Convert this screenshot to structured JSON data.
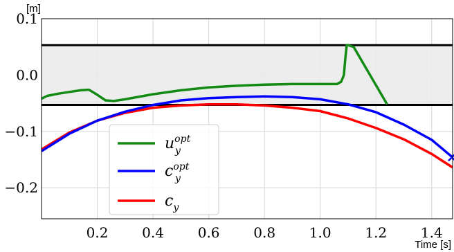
{
  "chart_data": {
    "type": "line",
    "title": "",
    "xlabel": "Time [s]",
    "ylabel": "[m]",
    "xlim": [
      0.0,
      1.475
    ],
    "ylim": [
      -0.255,
      0.1
    ],
    "xticks": [
      0.2,
      0.4,
      0.6,
      0.8,
      1.0,
      1.2,
      1.4
    ],
    "xtick_labels": [
      "0.2",
      "0.4",
      "0.6",
      "0.8",
      "1.0",
      "1.2",
      "1.4"
    ],
    "yticks": [
      0.1,
      0.0,
      -0.1,
      -0.2
    ],
    "ytick_labels": [
      "0.1",
      "0.0",
      "−0.1",
      "−0.2"
    ],
    "grid": true,
    "legend_position": "lower-left",
    "bounds": {
      "upper": 0.053,
      "lower": -0.053,
      "line_color": "#000000",
      "fill_color": "#ebebeb"
    },
    "series": [
      {
        "name": "u",
        "sup": "opt",
        "sub": "y",
        "color": "#138a13",
        "x": [
          0.0,
          0.02,
          0.06,
          0.1,
          0.14,
          0.17,
          0.2,
          0.23,
          0.26,
          0.3,
          0.4,
          0.5,
          0.6,
          0.7,
          0.8,
          0.9,
          1.0,
          1.06,
          1.075,
          1.085,
          1.09,
          1.095,
          1.1,
          1.12,
          1.16,
          1.2,
          1.24
        ],
        "y": [
          -0.042,
          -0.037,
          -0.033,
          -0.03,
          -0.027,
          -0.026,
          -0.035,
          -0.045,
          -0.046,
          -0.043,
          -0.034,
          -0.027,
          -0.022,
          -0.019,
          -0.017,
          -0.016,
          -0.016,
          -0.016,
          -0.012,
          0.0,
          0.03,
          0.053,
          0.053,
          0.05,
          0.016,
          -0.018,
          -0.052
        ]
      },
      {
        "name": "c",
        "sup": "opt",
        "sub": "y",
        "color": "#0000ff",
        "x": [
          0.0,
          0.1,
          0.2,
          0.3,
          0.4,
          0.5,
          0.6,
          0.7,
          0.8,
          0.9,
          1.0,
          1.1,
          1.2,
          1.3,
          1.4,
          1.475
        ],
        "y": [
          -0.135,
          -0.104,
          -0.081,
          -0.065,
          -0.053,
          -0.045,
          -0.041,
          -0.039,
          -0.038,
          -0.039,
          -0.043,
          -0.052,
          -0.066,
          -0.088,
          -0.115,
          -0.146
        ]
      },
      {
        "name": "c",
        "sup": "",
        "sub": "y",
        "color": "#ff0000",
        "x": [
          0.0,
          0.1,
          0.2,
          0.3,
          0.4,
          0.5,
          0.6,
          0.7,
          0.8,
          0.9,
          1.0,
          1.1,
          1.2,
          1.3,
          1.4,
          1.475
        ],
        "y": [
          -0.132,
          -0.102,
          -0.081,
          -0.067,
          -0.058,
          -0.054,
          -0.052,
          -0.052,
          -0.054,
          -0.058,
          -0.064,
          -0.077,
          -0.094,
          -0.114,
          -0.14,
          -0.164
        ]
      }
    ],
    "end_marker": {
      "x": 1.475,
      "y": -0.146,
      "color": "#0000ff",
      "shape": "x"
    }
  }
}
